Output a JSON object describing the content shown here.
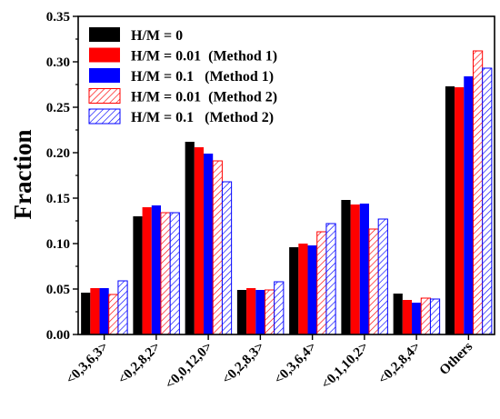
{
  "chart_data": {
    "type": "bar",
    "ylabel": "Fraction",
    "xlabel": "",
    "ylim": [
      0,
      0.35
    ],
    "yticks": [
      "0.00",
      "0.05",
      "0.10",
      "0.15",
      "0.20",
      "0.25",
      "0.30",
      "0.35"
    ],
    "categories": [
      "<0,3,6,3>",
      "<0,2,8,2>",
      "<0,0,12,0>",
      "<0,2,8,3>",
      "<0,3,6,4>",
      "<0,1,10,2>",
      "<0,2,8,4>",
      "Others"
    ],
    "legend_position": "top-left",
    "series": [
      {
        "name": "H/M = 0",
        "color": "#000000",
        "fill": "solid",
        "values": [
          0.046,
          0.13,
          0.212,
          0.049,
          0.096,
          0.148,
          0.045,
          0.273
        ]
      },
      {
        "name": "H/M = 0.01  (Method 1)",
        "color": "#ff0000",
        "fill": "solid",
        "values": [
          0.051,
          0.14,
          0.206,
          0.051,
          0.1,
          0.143,
          0.038,
          0.272
        ]
      },
      {
        "name": "H/M = 0.1   (Method 1)",
        "color": "#0000ff",
        "fill": "solid",
        "values": [
          0.051,
          0.142,
          0.199,
          0.049,
          0.098,
          0.144,
          0.035,
          0.284
        ]
      },
      {
        "name": "H/M = 0.01  (Method 2)",
        "color": "#ff0000",
        "fill": "hatched",
        "values": [
          0.044,
          0.134,
          0.191,
          0.049,
          0.113,
          0.116,
          0.04,
          0.312
        ]
      },
      {
        "name": "H/M = 0.1   (Method 2)",
        "color": "#0000ff",
        "fill": "hatched",
        "values": [
          0.059,
          0.134,
          0.168,
          0.058,
          0.122,
          0.127,
          0.039,
          0.293
        ]
      }
    ]
  }
}
